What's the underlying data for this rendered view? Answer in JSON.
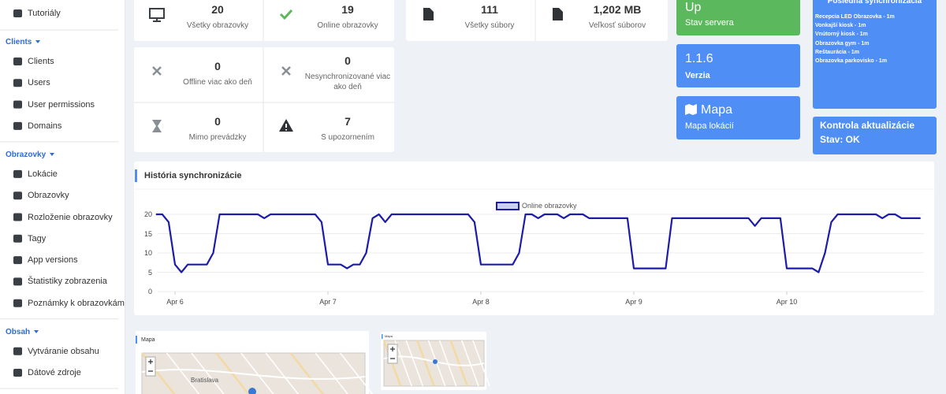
{
  "sidebar": {
    "top_item": "Tutoriály",
    "sections": [
      {
        "title": "Clients",
        "items": [
          "Clients",
          "Users",
          "User permissions",
          "Domains"
        ]
      },
      {
        "title": "Obrazovky",
        "items": [
          "Lokácie",
          "Obrazovky",
          "Rozloženie obrazovky",
          "Tagy",
          "App versions",
          "Štatistiky zobrazenia",
          "Poznámky k obrazovkám"
        ]
      },
      {
        "title": "Obsah",
        "items": [
          "Vytváranie obsahu",
          "Dátové zdroje"
        ]
      }
    ]
  },
  "stats": [
    {
      "value": "20",
      "label": "Všetky obrazovky"
    },
    {
      "value": "19",
      "label": "Online obrazovky"
    },
    {
      "value": "0",
      "label": "Offline viac ako deň"
    },
    {
      "value": "0",
      "label": "Nesynchronizované viac ako deň"
    },
    {
      "value": "0",
      "label": "Mimo prevádzky"
    },
    {
      "value": "7",
      "label": "S upozornením"
    }
  ],
  "files": [
    {
      "value": "111",
      "label": "Všetky súbory"
    },
    {
      "value": "1,202 MB",
      "label": "Veľkosť súborov"
    }
  ],
  "tiles": [
    {
      "value": "Up",
      "label": "Stav servera"
    },
    {
      "value": "1.1.6",
      "label": "Verzia"
    },
    {
      "value": "Mapa",
      "label": "Mapa lokácií"
    }
  ],
  "sync": {
    "title": "Posledná synchronizácia",
    "items": [
      "Recepcia LED Obrazovka - 1m",
      "Vonkajší kiosk - 1m",
      "Vnútorný kiosk - 1m",
      "Obrazovka gym - 1m",
      "Reštaurácia - 1m",
      "Obrazovka parkovisko - 1m"
    ]
  },
  "update": {
    "title": "Kontrola aktualizácie",
    "status": "Stav: OK"
  },
  "chart_data": {
    "type": "line",
    "title": "História synchronizácie",
    "categories": [
      null,
      null,
      null,
      "Apr 6",
      null,
      null,
      null,
      null,
      null,
      null,
      null,
      null,
      null,
      null,
      null,
      null,
      null,
      null,
      null,
      null,
      null,
      null,
      null,
      null,
      null,
      null,
      null,
      "Apr 7",
      null,
      null,
      null,
      null,
      null,
      null,
      null,
      null,
      null,
      null,
      null,
      null,
      null,
      null,
      null,
      null,
      null,
      null,
      null,
      null,
      null,
      null,
      null,
      "Apr 8",
      null,
      null,
      null,
      null,
      null,
      null,
      null,
      null,
      null,
      null,
      null,
      null,
      null,
      null,
      null,
      null,
      null,
      null,
      null,
      null,
      null,
      null,
      null,
      "Apr 9",
      null,
      null,
      null,
      null,
      null,
      null,
      null,
      null,
      null,
      null,
      null,
      null,
      null,
      null,
      null,
      null,
      null,
      null,
      null,
      null,
      null,
      null,
      null,
      "Apr 10",
      null,
      null,
      null,
      null,
      null,
      null,
      null,
      null,
      null,
      null,
      null,
      null,
      null,
      null,
      null,
      null,
      null,
      null,
      null,
      null,
      null
    ],
    "series": [
      {
        "name": "Online obrazovky",
        "color": "#1c1ca8",
        "values": [
          20,
          20,
          18,
          7,
          5,
          7,
          7,
          7,
          7,
          10,
          20,
          20,
          20,
          20,
          20,
          20,
          20,
          19,
          20,
          20,
          20,
          20,
          20,
          20,
          20,
          20,
          18,
          7,
          7,
          7,
          6,
          7,
          7,
          10,
          19,
          20,
          18,
          20,
          20,
          20,
          20,
          20,
          20,
          20,
          20,
          20,
          20,
          20,
          20,
          20,
          18,
          7,
          7,
          7,
          7,
          7,
          7,
          10,
          20,
          20,
          19,
          20,
          20,
          20,
          19,
          20,
          20,
          20,
          19,
          19,
          19,
          19,
          19,
          19,
          19,
          6,
          6,
          6,
          6,
          6,
          6,
          19,
          19,
          19,
          19,
          19,
          19,
          19,
          19,
          19,
          19,
          19,
          19,
          19,
          17,
          19,
          19,
          19,
          19,
          6,
          6,
          6,
          6,
          6,
          5,
          10,
          18,
          20,
          20,
          20,
          20,
          20,
          20,
          20,
          19,
          20,
          20,
          19,
          19,
          19,
          19
        ]
      }
    ],
    "ylim": [
      0,
      20
    ],
    "yticks": [
      0,
      5,
      10,
      15,
      20
    ],
    "grid": true,
    "legend": "top"
  },
  "maps": [
    {
      "title": "Mapa",
      "place": "Bratislava"
    },
    {
      "title": "Mapa"
    }
  ]
}
